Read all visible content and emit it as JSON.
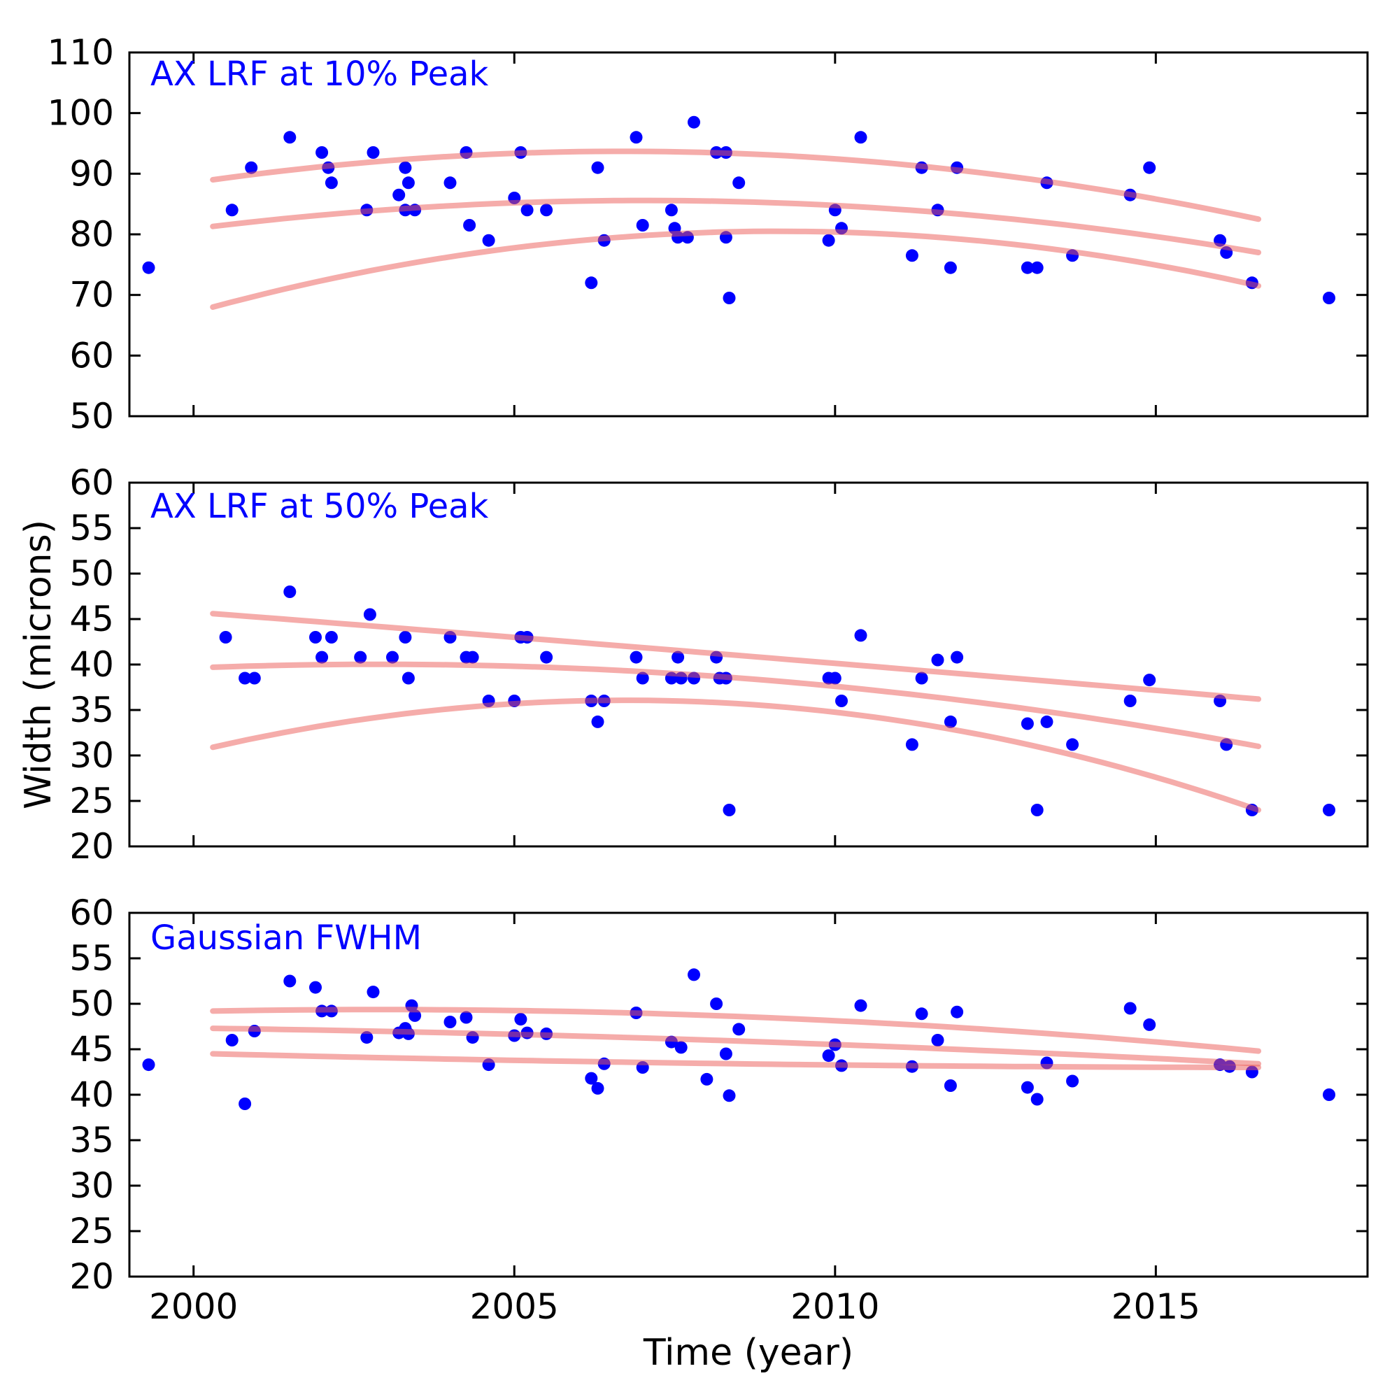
{
  "figure": {
    "xlabel": "Time (year)",
    "ylabel": "Width (microns)",
    "background_color": "#ffffff",
    "axis_color": "#000000",
    "dot_color": "#0000ff",
    "curve_color": "#eb5a55",
    "curve_opacity": 0.5,
    "title_color": "#0000ff"
  },
  "chart_data": [
    {
      "type": "scatter",
      "title": "AX LRF at 10% Peak",
      "xlabel": "",
      "ylabel": "",
      "xlim": [
        1999.0,
        2018.3
      ],
      "ylim": [
        50,
        110
      ],
      "xticks": [
        2000,
        2005,
        2010,
        2015
      ],
      "yticks": [
        50,
        60,
        70,
        80,
        90,
        100,
        110
      ],
      "show_xtick_labels": false,
      "grid": false,
      "points": [
        [
          1999.3,
          74.5
        ],
        [
          2000.6,
          84
        ],
        [
          2000.9,
          91
        ],
        [
          2001.5,
          96
        ],
        [
          2002.0,
          93.5
        ],
        [
          2002.1,
          91
        ],
        [
          2002.15,
          88.5
        ],
        [
          2002.7,
          84
        ],
        [
          2002.8,
          93.5
        ],
        [
          2003.2,
          86.5
        ],
        [
          2003.3,
          91
        ],
        [
          2003.35,
          88.5
        ],
        [
          2003.3,
          84
        ],
        [
          2003.45,
          84
        ],
        [
          2004.0,
          88.5
        ],
        [
          2004.25,
          93.5
        ],
        [
          2004.3,
          81.5
        ],
        [
          2004.6,
          79
        ],
        [
          2005.0,
          86
        ],
        [
          2005.1,
          93.5
        ],
        [
          2005.2,
          84
        ],
        [
          2005.5,
          84
        ],
        [
          2006.2,
          72
        ],
        [
          2006.3,
          91
        ],
        [
          2006.4,
          79
        ],
        [
          2006.9,
          96
        ],
        [
          2007.0,
          81.5
        ],
        [
          2007.45,
          84
        ],
        [
          2007.5,
          81
        ],
        [
          2007.55,
          79.5
        ],
        [
          2007.7,
          79.5
        ],
        [
          2007.8,
          98.5
        ],
        [
          2008.15,
          93.5
        ],
        [
          2008.3,
          93.5
        ],
        [
          2008.3,
          79.5
        ],
        [
          2008.35,
          69.5
        ],
        [
          2008.5,
          88.5
        ],
        [
          2009.9,
          79
        ],
        [
          2010.0,
          84
        ],
        [
          2010.1,
          81
        ],
        [
          2010.4,
          96
        ],
        [
          2011.2,
          76.5
        ],
        [
          2011.35,
          91
        ],
        [
          2011.6,
          84
        ],
        [
          2011.8,
          74.5
        ],
        [
          2011.9,
          91
        ],
        [
          2013.0,
          74.5
        ],
        [
          2013.15,
          74.5
        ],
        [
          2013.3,
          88.5
        ],
        [
          2013.7,
          76.5
        ],
        [
          2014.6,
          86.5
        ],
        [
          2014.9,
          91
        ],
        [
          2016.0,
          79
        ],
        [
          2016.1,
          77
        ],
        [
          2016.5,
          72
        ],
        [
          2017.7,
          69.5
        ]
      ],
      "curves": [
        {
          "name": "upper-fit",
          "through": [
            [
              2000.3,
              89.0
            ],
            [
              2008.0,
              93.5
            ],
            [
              2016.6,
              82.5
            ]
          ]
        },
        {
          "name": "middle-fit",
          "through": [
            [
              2000.3,
              81.3
            ],
            [
              2008.0,
              85.5
            ],
            [
              2016.6,
              77.0
            ]
          ]
        },
        {
          "name": "lower-fit",
          "through": [
            [
              2000.3,
              68.0
            ],
            [
              2009.3,
              80.5
            ],
            [
              2016.6,
              71.5
            ]
          ]
        }
      ]
    },
    {
      "type": "scatter",
      "title": "AX LRF at 50% Peak",
      "xlabel": "",
      "ylabel": "",
      "xlim": [
        1999.0,
        2018.3
      ],
      "ylim": [
        20,
        60
      ],
      "xticks": [
        2000,
        2005,
        2010,
        2015
      ],
      "yticks": [
        20,
        25,
        30,
        35,
        40,
        45,
        50,
        55,
        60
      ],
      "show_xtick_labels": false,
      "grid": false,
      "points": [
        [
          2000.5,
          43
        ],
        [
          2000.8,
          38.5
        ],
        [
          2000.95,
          38.5
        ],
        [
          2001.5,
          48
        ],
        [
          2001.9,
          43
        ],
        [
          2002.0,
          40.8
        ],
        [
          2002.15,
          43
        ],
        [
          2002.6,
          40.8
        ],
        [
          2002.75,
          45.5
        ],
        [
          2003.1,
          40.8
        ],
        [
          2003.3,
          43
        ],
        [
          2003.35,
          38.5
        ],
        [
          2004.0,
          43
        ],
        [
          2004.25,
          40.8
        ],
        [
          2004.35,
          40.8
        ],
        [
          2004.6,
          36
        ],
        [
          2005.0,
          36
        ],
        [
          2005.1,
          43
        ],
        [
          2005.2,
          43
        ],
        [
          2005.5,
          40.8
        ],
        [
          2006.2,
          36
        ],
        [
          2006.3,
          33.7
        ],
        [
          2006.4,
          36
        ],
        [
          2006.9,
          40.8
        ],
        [
          2007.0,
          38.5
        ],
        [
          2007.45,
          38.5
        ],
        [
          2007.55,
          40.8
        ],
        [
          2007.6,
          38.5
        ],
        [
          2007.8,
          38.5
        ],
        [
          2008.15,
          40.8
        ],
        [
          2008.2,
          38.5
        ],
        [
          2008.3,
          38.5
        ],
        [
          2008.35,
          24
        ],
        [
          2009.9,
          38.5
        ],
        [
          2010.0,
          38.5
        ],
        [
          2010.1,
          36
        ],
        [
          2010.4,
          43.2
        ],
        [
          2011.2,
          31.2
        ],
        [
          2011.35,
          38.5
        ],
        [
          2011.6,
          40.5
        ],
        [
          2011.8,
          33.7
        ],
        [
          2011.9,
          40.8
        ],
        [
          2013.0,
          33.5
        ],
        [
          2013.15,
          24
        ],
        [
          2013.3,
          33.7
        ],
        [
          2013.7,
          31.2
        ],
        [
          2014.6,
          36
        ],
        [
          2014.9,
          38.3
        ],
        [
          2016.0,
          36
        ],
        [
          2016.1,
          31.2
        ],
        [
          2016.5,
          24
        ],
        [
          2017.7,
          24
        ]
      ],
      "curves": [
        {
          "name": "upper-fit",
          "through": [
            [
              2000.3,
              45.6
            ],
            [
              2008.5,
              41.0
            ],
            [
              2016.6,
              36.2
            ]
          ]
        },
        {
          "name": "middle-fit",
          "through": [
            [
              2000.3,
              39.7
            ],
            [
              2006.5,
              39.4
            ],
            [
              2016.6,
              31.0
            ]
          ]
        },
        {
          "name": "lower-fit",
          "through": [
            [
              2000.3,
              30.9
            ],
            [
              2007.5,
              36.0
            ],
            [
              2016.6,
              24.0
            ]
          ]
        }
      ]
    },
    {
      "type": "scatter",
      "title": "Gaussian FWHM",
      "xlabel": "Time (year)",
      "ylabel": "",
      "xlim": [
        1999.0,
        2018.3
      ],
      "ylim": [
        20,
        60
      ],
      "xticks": [
        2000,
        2005,
        2010,
        2015
      ],
      "yticks": [
        20,
        25,
        30,
        35,
        40,
        45,
        50,
        55,
        60
      ],
      "show_xtick_labels": true,
      "grid": false,
      "points": [
        [
          1999.3,
          43.3
        ],
        [
          2000.6,
          46
        ],
        [
          2000.8,
          39
        ],
        [
          2000.95,
          47
        ],
        [
          2001.5,
          52.5
        ],
        [
          2001.9,
          51.8
        ],
        [
          2002.0,
          49.2
        ],
        [
          2002.15,
          49.2
        ],
        [
          2002.7,
          46.3
        ],
        [
          2002.8,
          51.3
        ],
        [
          2003.2,
          46.8
        ],
        [
          2003.3,
          47.3
        ],
        [
          2003.35,
          46.7
        ],
        [
          2003.4,
          49.8
        ],
        [
          2003.45,
          48.7
        ],
        [
          2004.0,
          48
        ],
        [
          2004.25,
          48.5
        ],
        [
          2004.35,
          46.3
        ],
        [
          2004.6,
          43.3
        ],
        [
          2005.0,
          46.5
        ],
        [
          2005.1,
          48.3
        ],
        [
          2005.2,
          46.8
        ],
        [
          2005.5,
          46.7
        ],
        [
          2006.2,
          41.8
        ],
        [
          2006.3,
          40.7
        ],
        [
          2006.4,
          43.4
        ],
        [
          2006.9,
          49
        ],
        [
          2007.0,
          43
        ],
        [
          2007.45,
          45.8
        ],
        [
          2007.6,
          45.2
        ],
        [
          2007.8,
          53.2
        ],
        [
          2008.0,
          41.7
        ],
        [
          2008.15,
          50
        ],
        [
          2008.3,
          44.5
        ],
        [
          2008.35,
          39.9
        ],
        [
          2008.5,
          47.2
        ],
        [
          2009.9,
          44.3
        ],
        [
          2010.0,
          45.5
        ],
        [
          2010.1,
          43.2
        ],
        [
          2010.4,
          49.8
        ],
        [
          2011.2,
          43.1
        ],
        [
          2011.35,
          48.9
        ],
        [
          2011.6,
          46
        ],
        [
          2011.8,
          41
        ],
        [
          2011.9,
          49.1
        ],
        [
          2013.0,
          40.8
        ],
        [
          2013.15,
          39.5
        ],
        [
          2013.3,
          43.5
        ],
        [
          2013.7,
          41.5
        ],
        [
          2014.6,
          49.5
        ],
        [
          2014.9,
          47.7
        ],
        [
          2016.0,
          43.3
        ],
        [
          2016.15,
          43.1
        ],
        [
          2016.5,
          42.5
        ],
        [
          2017.7,
          40
        ]
      ],
      "curves": [
        {
          "name": "upper-fit",
          "through": [
            [
              2000.3,
              49.2
            ],
            [
              2008.5,
              48.6
            ],
            [
              2016.6,
              44.8
            ]
          ]
        },
        {
          "name": "middle-fit",
          "through": [
            [
              2000.3,
              47.3
            ],
            [
              2008.5,
              45.9
            ],
            [
              2016.6,
              43.4
            ]
          ]
        },
        {
          "name": "lower-fit",
          "through": [
            [
              2000.3,
              44.5
            ],
            [
              2008.5,
              43.4
            ],
            [
              2016.6,
              43.0
            ]
          ]
        }
      ]
    }
  ]
}
